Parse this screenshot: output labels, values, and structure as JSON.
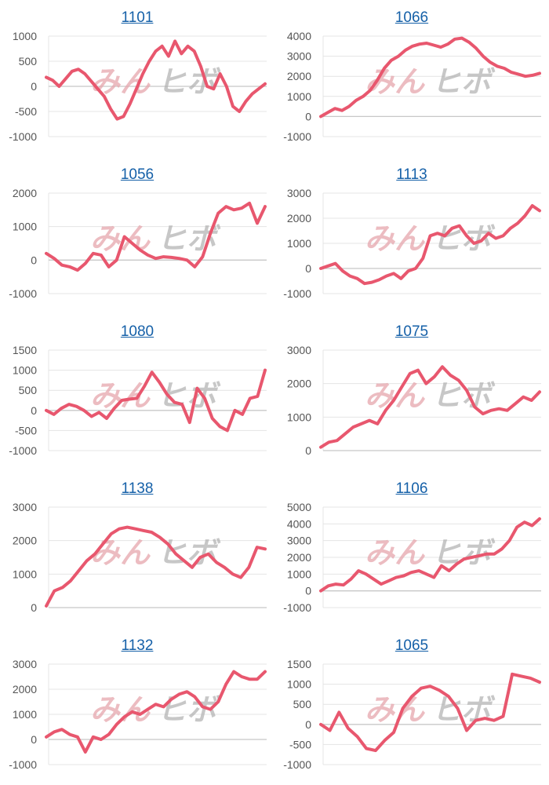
{
  "colors": {
    "line": "#e8576e",
    "title_link": "#1560a8",
    "grid": "#e4e4e4",
    "axis": "#c8c8c8",
    "tick_text": "#555555"
  },
  "watermark": {
    "left": "みん",
    "right": "ヒボ"
  },
  "chart_data": [
    {
      "type": "line",
      "title": "1101",
      "ylim": [
        -1000,
        1000
      ],
      "yticks": [
        1000,
        500,
        0,
        -500,
        -1000
      ],
      "values": [
        180,
        120,
        0,
        150,
        300,
        340,
        250,
        100,
        -50,
        -200,
        -450,
        -650,
        -600,
        -350,
        -50,
        250,
        500,
        700,
        800,
        600,
        900,
        650,
        800,
        700,
        400,
        0,
        -50,
        250,
        0,
        -400,
        -500,
        -300,
        -150,
        -50,
        50
      ]
    },
    {
      "type": "line",
      "title": "1066",
      "ylim": [
        -1000,
        4000
      ],
      "yticks": [
        4000,
        3000,
        2000,
        1000,
        0,
        -1000
      ],
      "values": [
        0,
        200,
        400,
        300,
        500,
        800,
        1000,
        1300,
        1800,
        2400,
        2800,
        3000,
        3300,
        3500,
        3600,
        3650,
        3550,
        3450,
        3600,
        3850,
        3900,
        3700,
        3400,
        3000,
        2700,
        2500,
        2400,
        2200,
        2100,
        2000,
        2050,
        2150
      ]
    },
    {
      "type": "line",
      "title": "1056",
      "ylim": [
        -1000,
        2000
      ],
      "yticks": [
        2000,
        1000,
        0,
        -1000
      ],
      "values": [
        200,
        50,
        -150,
        -200,
        -300,
        -100,
        200,
        150,
        -200,
        0,
        700,
        500,
        300,
        150,
        50,
        100,
        80,
        50,
        0,
        -200,
        100,
        800,
        1400,
        1600,
        1500,
        1550,
        1700,
        1100,
        1600
      ]
    },
    {
      "type": "line",
      "title": "1113",
      "ylim": [
        -1000,
        3000
      ],
      "yticks": [
        3000,
        2000,
        1000,
        0,
        -1000
      ],
      "values": [
        0,
        100,
        200,
        -100,
        -300,
        -400,
        -600,
        -550,
        -450,
        -300,
        -200,
        -400,
        -100,
        0,
        400,
        1300,
        1400,
        1300,
        1600,
        1700,
        1300,
        1000,
        1100,
        1400,
        1200,
        1300,
        1600,
        1800,
        2100,
        2500,
        2300
      ]
    },
    {
      "type": "line",
      "title": "1080",
      "ylim": [
        -1000,
        1500
      ],
      "yticks": [
        1500,
        1000,
        500,
        0,
        -500,
        -1000
      ],
      "values": [
        0,
        -100,
        50,
        150,
        100,
        0,
        -150,
        -50,
        -200,
        50,
        250,
        280,
        300,
        600,
        950,
        700,
        400,
        200,
        150,
        -300,
        550,
        300,
        -200,
        -400,
        -500,
        0,
        -100,
        300,
        350,
        1000
      ]
    },
    {
      "type": "line",
      "title": "1075",
      "ylim": [
        0,
        3000
      ],
      "yticks": [
        3000,
        2000,
        1000,
        0
      ],
      "values": [
        100,
        250,
        300,
        500,
        700,
        800,
        900,
        800,
        1200,
        1500,
        1900,
        2300,
        2400,
        2000,
        2200,
        2500,
        2250,
        2100,
        1800,
        1300,
        1100,
        1200,
        1250,
        1200,
        1400,
        1600,
        1500,
        1750
      ]
    },
    {
      "type": "line",
      "title": "1138",
      "ylim": [
        0,
        3000
      ],
      "yticks": [
        3000,
        2000,
        1000,
        0
      ],
      "values": [
        50,
        500,
        600,
        800,
        1100,
        1400,
        1600,
        1900,
        2200,
        2350,
        2400,
        2350,
        2300,
        2250,
        2100,
        1900,
        1600,
        1400,
        1200,
        1500,
        1600,
        1350,
        1200,
        1000,
        900,
        1200,
        1800,
        1750
      ]
    },
    {
      "type": "line",
      "title": "1106",
      "ylim": [
        -1000,
        5000
      ],
      "yticks": [
        5000,
        4000,
        3000,
        2000,
        1000,
        0,
        -1000
      ],
      "values": [
        0,
        300,
        400,
        350,
        700,
        1200,
        1000,
        700,
        400,
        600,
        800,
        900,
        1100,
        1200,
        1000,
        800,
        1500,
        1200,
        1600,
        1900,
        2000,
        2100,
        2200,
        2200,
        2500,
        3000,
        3800,
        4100,
        3900,
        4300
      ]
    },
    {
      "type": "line",
      "title": "1132",
      "ylim": [
        -1000,
        3000
      ],
      "yticks": [
        3000,
        2000,
        1000,
        0,
        -1000
      ],
      "values": [
        100,
        300,
        400,
        200,
        100,
        -500,
        100,
        0,
        200,
        600,
        900,
        1100,
        1000,
        1200,
        1400,
        1300,
        1600,
        1800,
        1900,
        1700,
        1300,
        1200,
        1500,
        2200,
        2700,
        2500,
        2400,
        2400,
        2700
      ]
    },
    {
      "type": "line",
      "title": "1065",
      "ylim": [
        -1000,
        1500
      ],
      "yticks": [
        1500,
        1000,
        500,
        0,
        -500,
        -1000
      ],
      "values": [
        0,
        -150,
        300,
        -100,
        -300,
        -600,
        -650,
        -400,
        -200,
        400,
        700,
        900,
        950,
        850,
        700,
        400,
        -150,
        100,
        150,
        100,
        200,
        1250,
        1200,
        1150,
        1050
      ]
    }
  ]
}
